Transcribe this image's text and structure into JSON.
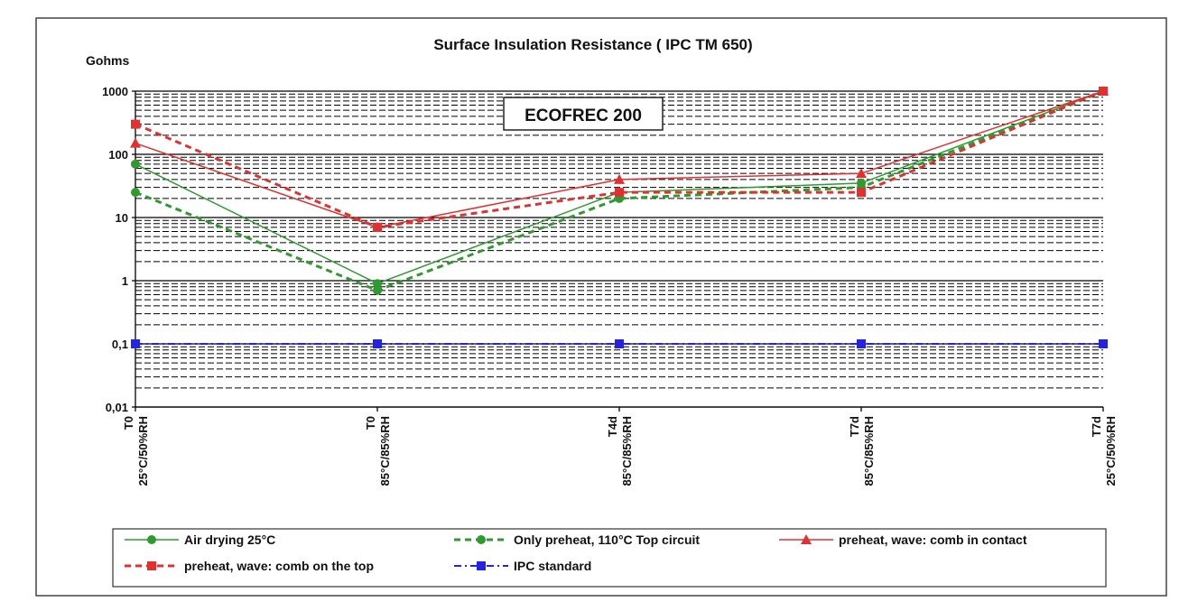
{
  "chart_data": {
    "type": "line",
    "title": "Surface  Insulation Resistance  ( IPC  TM 650)",
    "ylabel": "Gohms",
    "y_scale": "log",
    "ylim": [
      0.01,
      1000
    ],
    "y_ticks": [
      {
        "value": 0.01,
        "label": "0,01"
      },
      {
        "value": 0.1,
        "label": "0,1"
      },
      {
        "value": 1,
        "label": "1"
      },
      {
        "value": 10,
        "label": "10"
      },
      {
        "value": 100,
        "label": "100"
      },
      {
        "value": 1000,
        "label": "1000"
      }
    ],
    "categories": [
      [
        "T0",
        "25°C/50%RH"
      ],
      [
        "T0",
        "85°C/85%RH"
      ],
      [
        "T4d",
        "85°C/85%RH"
      ],
      [
        "T7d",
        "85°C/85%RH"
      ],
      [
        "T7d",
        "25°C/50%RH"
      ]
    ],
    "grid": true,
    "annotation": "ECOFREC  200",
    "legend_position": "bottom",
    "series": [
      {
        "name": "Air drying   25°C",
        "values": [
          70,
          0.9,
          25,
          35,
          1000
        ],
        "color": "#2e9b2e",
        "line": "solid",
        "marker": "circle"
      },
      {
        "name": "Only preheat,  110°C  Top  circuit",
        "values": [
          25,
          0.7,
          20,
          30,
          1000
        ],
        "color": "#2e9b2e",
        "line": "dashed",
        "marker": "circle"
      },
      {
        "name": "preheat, wave:   comb in contact",
        "values": [
          150,
          7,
          40,
          50,
          1000
        ],
        "color": "#e23030",
        "line": "solid",
        "marker": "triangle"
      },
      {
        "name": "preheat,  wave:   comb on the top",
        "values": [
          300,
          7,
          25,
          25,
          1000
        ],
        "color": "#e23030",
        "line": "dashed",
        "marker": "square"
      },
      {
        "name": "IPC  standard",
        "values": [
          0.1,
          0.1,
          0.1,
          0.1,
          0.1
        ],
        "color": "#2424e0",
        "line": "dashdot",
        "marker": "square"
      }
    ]
  }
}
